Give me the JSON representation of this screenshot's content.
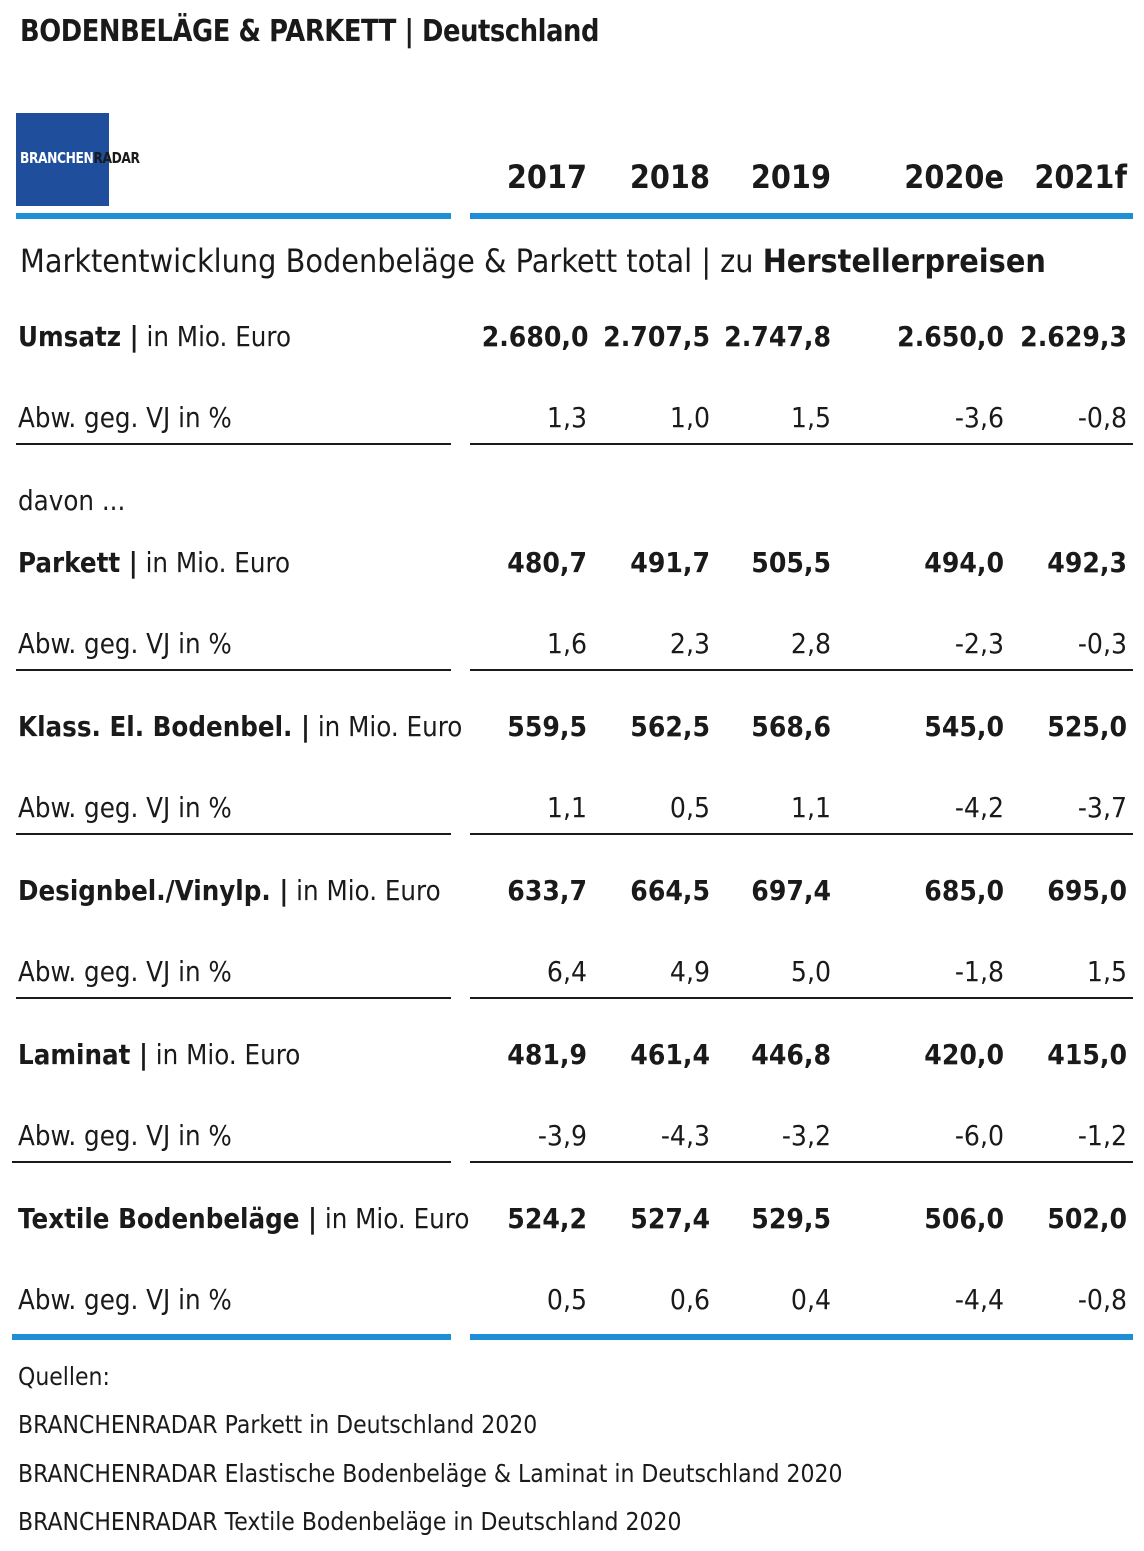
{
  "title": "BODENBELÄGE & PARKETT | Deutschland",
  "logo": {
    "part1": "BRANCHEN",
    "part2": "RADAR"
  },
  "columns": [
    "2017",
    "2018",
    "2019",
    "2020e",
    "2021f"
  ],
  "subtitle": {
    "normal": "Marktentwicklung Bodenbeläge & Parkett total | zu ",
    "bold": "Herstellerpreisen"
  },
  "davon": "davon ...",
  "sections": [
    {
      "name": "Umsatz |",
      "unit": " in Mio. Euro",
      "values": [
        "2.680,0",
        "2.707,5",
        "2.747,8",
        "2.650,0",
        "2.629,3"
      ],
      "change_label": "Abw. geg. VJ in %",
      "changes": [
        "1,3",
        "1,0",
        "1,5",
        "-3,6",
        "-0,8"
      ]
    },
    {
      "name": "Parkett |",
      "unit": " in Mio. Euro",
      "values": [
        "480,7",
        "491,7",
        "505,5",
        "494,0",
        "492,3"
      ],
      "change_label": "Abw. geg. VJ in %",
      "changes": [
        "1,6",
        "2,3",
        "2,8",
        "-2,3",
        "-0,3"
      ]
    },
    {
      "name": "Klass. El. Bodenbel. |",
      "unit": " in Mio. Euro",
      "values": [
        "559,5",
        "562,5",
        "568,6",
        "545,0",
        "525,0"
      ],
      "change_label": "Abw. geg. VJ in %",
      "changes": [
        "1,1",
        "0,5",
        "1,1",
        "-4,2",
        "-3,7"
      ]
    },
    {
      "name": "Designbel./Vinylp. |",
      "unit": " in Mio. Euro",
      "values": [
        "633,7",
        "664,5",
        "697,4",
        "685,0",
        "695,0"
      ],
      "change_label": "Abw. geg. VJ in %",
      "changes": [
        "6,4",
        "4,9",
        "5,0",
        "-1,8",
        "1,5"
      ]
    },
    {
      "name": "Laminat |",
      "unit": " in Mio. Euro",
      "values": [
        "481,9",
        "461,4",
        "446,8",
        "420,0",
        "415,0"
      ],
      "change_label": "Abw. geg. VJ in %",
      "changes": [
        "-3,9",
        "-4,3",
        "-3,2",
        "-6,0",
        "-1,2"
      ]
    },
    {
      "name": "Textile Bodenbeläge |",
      "unit": " in Mio. Euro",
      "values": [
        "524,2",
        "527,4",
        "529,5",
        "506,0",
        "502,0"
      ],
      "change_label": "Abw. geg. VJ in %",
      "changes": [
        "0,5",
        "0,6",
        "0,4",
        "-4,4",
        "-0,8"
      ]
    }
  ],
  "sources": [
    "Quellen:",
    "BRANCHENRADAR Parkett in Deutschland 2020",
    "BRANCHENRADAR Elastische Bodenbeläge & Laminat in Deutschland 2020",
    "BRANCHENRADAR Textile Bodenbeläge in Deutschland 2020"
  ],
  "colors": {
    "accent_rule": "#1e8fd6",
    "logo_bg": "#1f4e9c"
  },
  "chart_data": {
    "type": "table",
    "title": "BODENBELÄGE & PARKETT | Deutschland",
    "subtitle": "Marktentwicklung Bodenbeläge & Parkett total | zu Herstellerpreisen",
    "columns": [
      "2017",
      "2018",
      "2019",
      "2020e",
      "2021f"
    ],
    "rows": [
      {
        "label": "Umsatz | in Mio. Euro",
        "values": [
          2680.0,
          2707.5,
          2747.8,
          2650.0,
          2629.3
        ]
      },
      {
        "label": "Abw. geg. VJ in %",
        "values": [
          1.3,
          1.0,
          1.5,
          -3.6,
          -0.8
        ]
      },
      {
        "label": "Parkett | in Mio. Euro",
        "values": [
          480.7,
          491.7,
          505.5,
          494.0,
          492.3
        ]
      },
      {
        "label": "Abw. geg. VJ in %",
        "values": [
          1.6,
          2.3,
          2.8,
          -2.3,
          -0.3
        ]
      },
      {
        "label": "Klass. El. Bodenbel. | in Mio. Euro",
        "values": [
          559.5,
          562.5,
          568.6,
          545.0,
          525.0
        ]
      },
      {
        "label": "Abw. geg. VJ in %",
        "values": [
          1.1,
          0.5,
          1.1,
          -4.2,
          -3.7
        ]
      },
      {
        "label": "Designbel./Vinylp. | in Mio. Euro",
        "values": [
          633.7,
          664.5,
          697.4,
          685.0,
          695.0
        ]
      },
      {
        "label": "Abw. geg. VJ in %",
        "values": [
          6.4,
          4.9,
          5.0,
          -1.8,
          1.5
        ]
      },
      {
        "label": "Laminat | in Mio. Euro",
        "values": [
          481.9,
          461.4,
          446.8,
          420.0,
          415.0
        ]
      },
      {
        "label": "Abw. geg. VJ in %",
        "values": [
          -3.9,
          -4.3,
          -3.2,
          -6.0,
          -1.2
        ]
      },
      {
        "label": "Textile Bodenbeläge | in Mio. Euro",
        "values": [
          524.2,
          527.4,
          529.5,
          506.0,
          502.0
        ]
      },
      {
        "label": "Abw. geg. VJ in %",
        "values": [
          0.5,
          0.6,
          0.4,
          -4.4,
          -0.8
        ]
      }
    ]
  }
}
